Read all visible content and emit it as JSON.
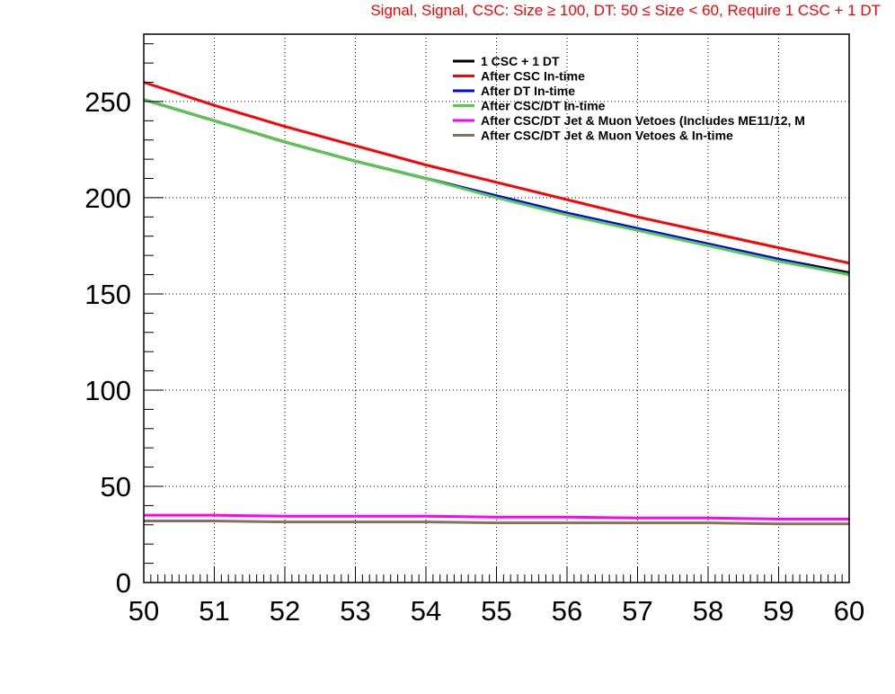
{
  "chart_data": {
    "type": "line",
    "title": "Signal, Signal, CSC: Size   ≥ 100, DT: 50  ≤ Size < 60, Require 1 CSC + 1 DT",
    "xlabel": "",
    "ylabel": "",
    "xlim": [
      50,
      60
    ],
    "ylim": [
      0,
      285
    ],
    "grid": true,
    "legend_position": "top-right",
    "x_ticks": [
      50,
      51,
      52,
      53,
      54,
      55,
      56,
      57,
      58,
      59,
      60
    ],
    "y_ticks": [
      0,
      50,
      100,
      150,
      200,
      250
    ],
    "x": [
      50,
      51,
      52,
      53,
      54,
      55,
      56,
      57,
      58,
      59,
      60
    ],
    "series": [
      {
        "name": "1 CSC + 1 DT",
        "color": "#000000",
        "values": [
          251,
          240,
          229,
          219,
          210,
          201,
          192,
          184,
          176,
          168,
          161
        ]
      },
      {
        "name": "After CSC In-time",
        "color": "#ff0000",
        "values": [
          260,
          248,
          237,
          227,
          217,
          208,
          199,
          190,
          182,
          174,
          166
        ]
      },
      {
        "name": "After DT In-time",
        "color": "#0000ff",
        "values": [
          251,
          240,
          229,
          219,
          210,
          201,
          192,
          184,
          176,
          168,
          160
        ]
      },
      {
        "name": "After CSC/DT In-time",
        "color": "#55cc44",
        "values": [
          251,
          240,
          229,
          219,
          210,
          200,
          191,
          183,
          175,
          167,
          160
        ]
      },
      {
        "name": "After CSC/DT Jet & Muon Vetoes (Includes ME11/12, M",
        "color": "#ff00ff",
        "values": [
          35,
          35,
          34.5,
          34.5,
          34.5,
          34,
          34,
          33.5,
          33.5,
          33,
          33
        ]
      },
      {
        "name": "After CSC/DT Jet & Muon Vetoes & In-time",
        "color": "#8b6f5e",
        "values": [
          32,
          32,
          31.5,
          31.5,
          31.5,
          31,
          31,
          31,
          31,
          30.5,
          30.5
        ]
      }
    ]
  }
}
